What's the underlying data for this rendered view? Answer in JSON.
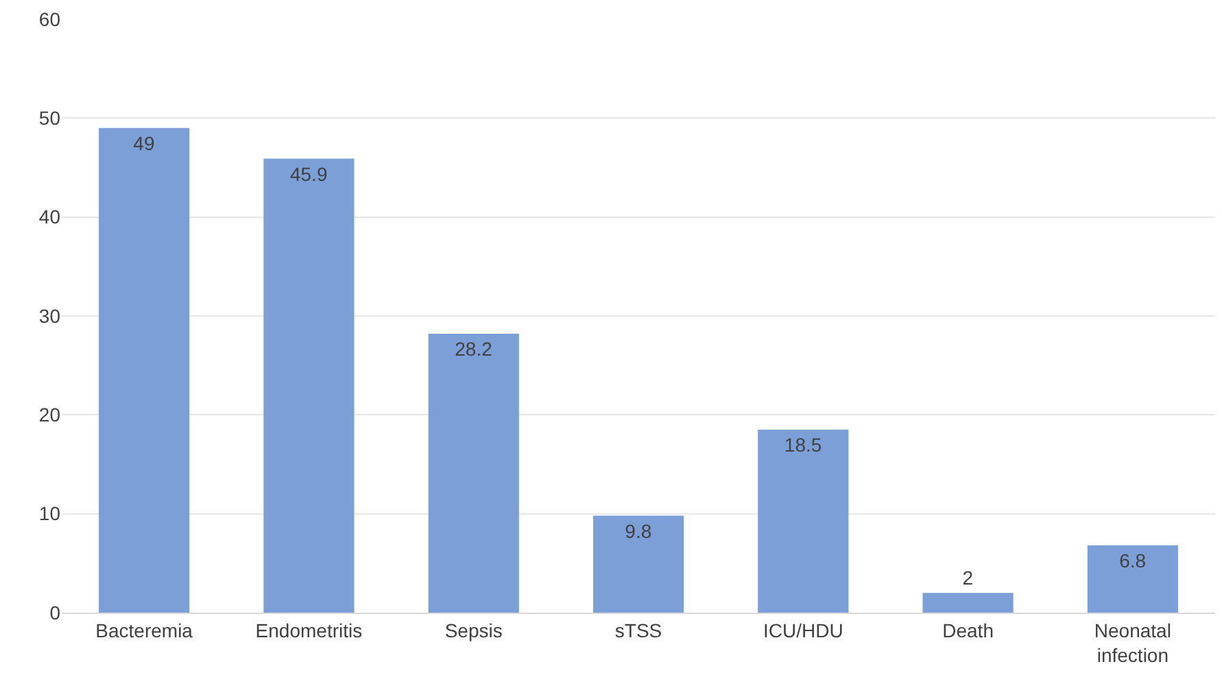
{
  "chart_data": {
    "type": "bar",
    "categories": [
      "Bacteremia",
      "Endometritis",
      "Sepsis",
      "sTSS",
      "ICU/HDU",
      "Death",
      "Neonatal infection"
    ],
    "values": [
      49,
      45.9,
      28.2,
      9.8,
      18.5,
      2,
      6.8
    ],
    "color": "#7b9fd6",
    "ylim": [
      0,
      60
    ],
    "yticks": [
      0,
      10,
      20,
      30,
      40,
      50,
      60
    ],
    "grid": "y",
    "data_labels": true
  }
}
